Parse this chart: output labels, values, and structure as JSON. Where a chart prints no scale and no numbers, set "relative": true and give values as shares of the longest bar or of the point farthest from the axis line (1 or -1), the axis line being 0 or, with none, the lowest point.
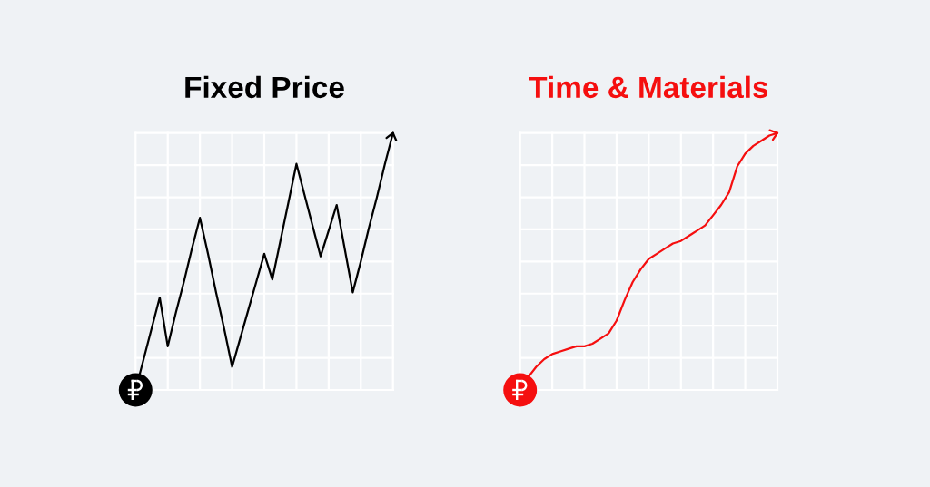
{
  "chart_data": [
    {
      "type": "line",
      "title": "Fixed Price",
      "relative": true,
      "grid": true,
      "categories": [
        null,
        null,
        null,
        null,
        null,
        null,
        null,
        null,
        null,
        null,
        null,
        null,
        null,
        null,
        null,
        null,
        null,
        null,
        null,
        null,
        null,
        null,
        null,
        null,
        null,
        null,
        null,
        null,
        null,
        null,
        null,
        null,
        null
      ],
      "series": [
        {
          "color": "#000000",
          "values": [
            0,
            0.12,
            0.24,
            0.36,
            0.17,
            0.3,
            0.42,
            0.55,
            0.67,
            0.53,
            0.38,
            0.24,
            0.09,
            0.2,
            0.31,
            0.42,
            0.53,
            0.43,
            0.58,
            0.73,
            0.88,
            0.76,
            0.64,
            0.52,
            0.62,
            0.72,
            0.55,
            0.38,
            0.5,
            0.63,
            0.75,
            0.88,
            1.0
          ]
        }
      ]
    },
    {
      "type": "line",
      "title": "Time & Materials",
      "relative": true,
      "grid": true,
      "categories": [
        null,
        null,
        null,
        null,
        null,
        null,
        null,
        null,
        null,
        null,
        null,
        null,
        null,
        null,
        null,
        null,
        null,
        null,
        null,
        null,
        null,
        null,
        null,
        null,
        null,
        null,
        null,
        null,
        null,
        null,
        null,
        null,
        null
      ],
      "series": [
        {
          "color": "#f50f0f",
          "values": [
            0,
            0.05,
            0.09,
            0.12,
            0.14,
            0.15,
            0.16,
            0.17,
            0.17,
            0.18,
            0.2,
            0.22,
            0.27,
            0.35,
            0.42,
            0.47,
            0.51,
            0.53,
            0.55,
            0.57,
            0.58,
            0.6,
            0.62,
            0.64,
            0.68,
            0.72,
            0.77,
            0.87,
            0.92,
            0.95,
            0.97,
            0.99,
            1
          ]
        }
      ]
    }
  ]
}
